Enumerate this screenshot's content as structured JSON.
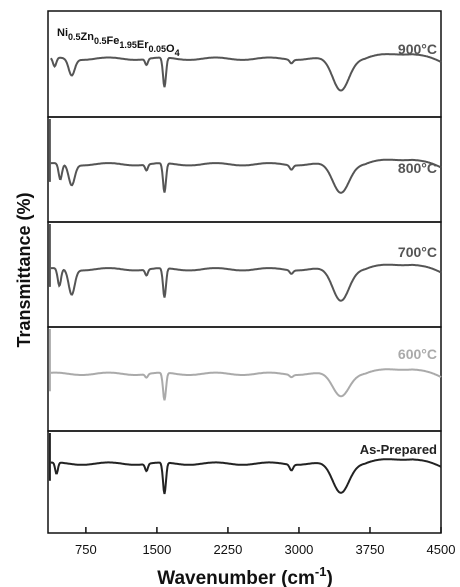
{
  "chart_data": {
    "type": "line",
    "title": "",
    "composition": {
      "parts": [
        {
          "t": "Ni",
          "s": "0.5"
        },
        {
          "t": "Zn",
          "s": "0.5"
        },
        {
          "t": "Fe",
          "s": "1.95"
        },
        {
          "t": "Er",
          "s": "0.05"
        },
        {
          "t": "O",
          "s": "4"
        }
      ]
    },
    "xlabel": {
      "main": "Wavenumber (cm",
      "sup": "-1",
      "end": ")"
    },
    "ylabel": "Transmittance (%)",
    "xlim": [
      350,
      4500
    ],
    "xticks": [
      750,
      1500,
      2250,
      3000,
      3750,
      4500
    ],
    "stacked_panels": true,
    "grid": false,
    "series": [
      {
        "name": "900°C",
        "color": "#555555",
        "peaks": [
          {
            "x": 420,
            "depth": 0.3,
            "width": 25
          },
          {
            "x": 600,
            "depth": 0.55,
            "width": 45
          },
          {
            "x": 1390,
            "depth": 0.2,
            "width": 20
          },
          {
            "x": 1580,
            "depth": 1.0,
            "width": 22
          },
          {
            "x": 2920,
            "depth": 0.12,
            "width": 25
          },
          {
            "x": 3440,
            "depth": 1.05,
            "width": 120
          }
        ]
      },
      {
        "name": "800°C",
        "color": "#555555",
        "peaks": [
          {
            "x": 480,
            "depth": 0.55,
            "width": 25
          },
          {
            "x": 600,
            "depth": 0.7,
            "width": 45
          },
          {
            "x": 1390,
            "depth": 0.2,
            "width": 20
          },
          {
            "x": 1580,
            "depth": 1.0,
            "width": 22
          },
          {
            "x": 2920,
            "depth": 0.15,
            "width": 25
          },
          {
            "x": 3440,
            "depth": 0.95,
            "width": 120
          }
        ]
      },
      {
        "name": "700°C",
        "color": "#555555",
        "peaks": [
          {
            "x": 470,
            "depth": 0.6,
            "width": 25
          },
          {
            "x": 600,
            "depth": 0.85,
            "width": 45
          },
          {
            "x": 1390,
            "depth": 0.2,
            "width": 20
          },
          {
            "x": 1580,
            "depth": 1.0,
            "width": 22
          },
          {
            "x": 2920,
            "depth": 0.12,
            "width": 25
          },
          {
            "x": 3440,
            "depth": 1.05,
            "width": 120
          }
        ]
      },
      {
        "name": "600°C",
        "color": "#aaaaaa",
        "peaks": [
          {
            "x": 1390,
            "depth": 0.12,
            "width": 20
          },
          {
            "x": 1580,
            "depth": 0.95,
            "width": 22
          },
          {
            "x": 2920,
            "depth": 0.08,
            "width": 25
          },
          {
            "x": 3440,
            "depth": 0.75,
            "width": 120
          }
        ]
      },
      {
        "name": "As-Prepared",
        "color": "#222222",
        "peaks": [
          {
            "x": 440,
            "depth": 0.4,
            "width": 20
          },
          {
            "x": 1390,
            "depth": 0.25,
            "width": 20
          },
          {
            "x": 1580,
            "depth": 1.1,
            "width": 22
          },
          {
            "x": 2920,
            "depth": 0.2,
            "width": 25
          },
          {
            "x": 3440,
            "depth": 1.0,
            "width": 120
          }
        ]
      }
    ]
  }
}
